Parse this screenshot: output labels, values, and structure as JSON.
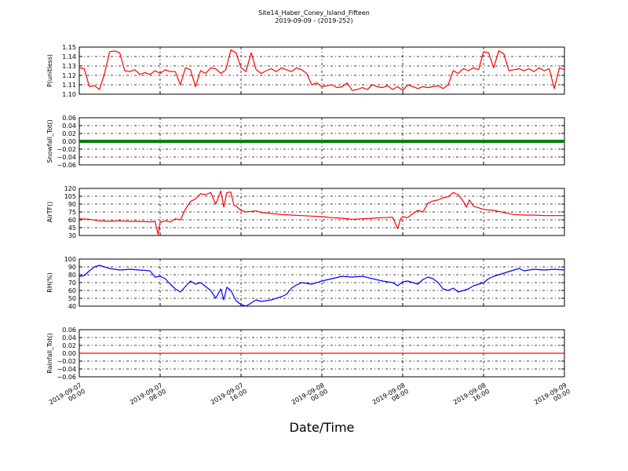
{
  "figure": {
    "title": "Site14_Haber_Coney_Island_Fifteen",
    "subtitle": "2019-09-09 - (2019-252)",
    "xlabel": "Date/Time"
  },
  "chart_data": [
    {
      "type": "line",
      "ylabel": "P(unitless)",
      "ylim": [
        1.1,
        1.15
      ],
      "yticks": [
        "1.10",
        "1.11",
        "1.12",
        "1.13",
        "1.14",
        "1.15"
      ],
      "xlim": [
        0,
        48
      ],
      "grid": true,
      "series": [
        {
          "color": "#ff0000",
          "x": [
            0,
            0.5,
            1,
            1.5,
            2,
            2.5,
            3,
            3.5,
            4,
            4.5,
            5,
            5.5,
            6,
            6.5,
            7,
            7.5,
            8,
            8.5,
            9,
            9.5,
            10,
            10.5,
            11,
            11.5,
            12,
            12.5,
            13,
            13.5,
            14,
            14.5,
            15,
            15.5,
            16,
            16.5,
            17,
            17.5,
            18,
            18.5,
            19,
            19.5,
            20,
            20.5,
            21,
            21.5,
            22,
            22.5,
            23,
            23.5,
            24,
            24.5,
            25,
            25.5,
            26,
            26.5,
            27,
            27.5,
            28,
            28.5,
            29,
            29.5,
            30,
            30.5,
            31,
            31.5,
            32,
            32.5,
            33,
            33.5,
            34,
            34.5,
            35,
            35.5,
            36,
            36.5,
            37,
            37.5,
            38,
            38.5,
            39,
            39.5,
            40,
            40.5,
            41,
            41.5,
            42,
            42.5,
            43,
            43.5,
            44,
            44.5,
            45,
            45.5,
            46,
            46.5,
            47,
            47.5,
            48
          ],
          "values": [
            1.128,
            1.127,
            1.108,
            1.109,
            1.105,
            1.122,
            1.145,
            1.146,
            1.144,
            1.125,
            1.124,
            1.126,
            1.121,
            1.123,
            1.121,
            1.125,
            1.122,
            1.126,
            1.124,
            1.124,
            1.11,
            1.128,
            1.126,
            1.108,
            1.125,
            1.122,
            1.128,
            1.127,
            1.122,
            1.126,
            1.147,
            1.144,
            1.128,
            1.124,
            1.144,
            1.126,
            1.122,
            1.125,
            1.127,
            1.124,
            1.128,
            1.126,
            1.124,
            1.128,
            1.126,
            1.122,
            1.11,
            1.112,
            1.108,
            1.109,
            1.11,
            1.107,
            1.108,
            1.112,
            1.104,
            1.105,
            1.107,
            1.105,
            1.11,
            1.108,
            1.107,
            1.109,
            1.105,
            1.108,
            1.104,
            1.11,
            1.108,
            1.106,
            1.108,
            1.107,
            1.108,
            1.109,
            1.106,
            1.11,
            1.125,
            1.122,
            1.127,
            1.125,
            1.128,
            1.126,
            1.145,
            1.144,
            1.128,
            1.146,
            1.143,
            1.125,
            1.126,
            1.127,
            1.125,
            1.127,
            1.124,
            1.128,
            1.125,
            1.127,
            1.106,
            1.128,
            1.126
          ]
        }
      ]
    },
    {
      "type": "line",
      "ylabel": "Snowfall_Tot()",
      "ylim": [
        -0.06,
        0.06
      ],
      "yticks": [
        "−0.06",
        "−0.04",
        "−0.02",
        "0.00",
        "0.02",
        "0.04",
        "0.06"
      ],
      "xlim": [
        0,
        48
      ],
      "grid": true,
      "series": [
        {
          "color": "#008000",
          "style": "thick",
          "x": [
            0,
            48
          ],
          "values": [
            0,
            0
          ]
        }
      ]
    },
    {
      "type": "line",
      "ylabel": "AirTF()",
      "ylim": [
        30,
        120
      ],
      "yticks": [
        "30",
        "45",
        "60",
        "75",
        "90",
        "105",
        "120"
      ],
      "xlim": [
        0,
        48
      ],
      "grid": true,
      "series": [
        {
          "color": "#ff0000",
          "x": [
            0,
            1,
            2,
            3,
            4,
            5,
            6,
            7,
            7.5,
            7.8,
            8,
            8.5,
            9,
            9.5,
            10,
            10.5,
            11,
            11.5,
            12,
            12.5,
            13,
            13.5,
            14,
            14.3,
            14.6,
            15,
            15.3,
            15.6,
            16,
            16.5,
            17,
            17.5,
            18,
            19,
            20,
            21,
            22,
            23,
            24,
            25,
            26,
            27,
            28,
            29,
            30,
            31,
            31.5,
            31.8,
            32,
            32.5,
            33,
            33.5,
            34,
            34.5,
            35,
            35.5,
            36,
            36.5,
            37,
            37.5,
            38,
            38.3,
            38.6,
            39,
            39.5,
            40,
            41,
            42,
            43,
            44,
            45,
            46,
            47,
            48
          ],
          "values": [
            62,
            61,
            58,
            57,
            58,
            57,
            57,
            56,
            57,
            32,
            55,
            58,
            56,
            62,
            60,
            80,
            95,
            100,
            110,
            108,
            112,
            90,
            115,
            84,
            112,
            113,
            88,
            85,
            78,
            75,
            76,
            77,
            74,
            72,
            70,
            69,
            68,
            67,
            66,
            64,
            63,
            61,
            62,
            63,
            64,
            65,
            43,
            62,
            66,
            64,
            72,
            78,
            75,
            92,
            96,
            98,
            102,
            104,
            112,
            108,
            95,
            84,
            98,
            86,
            83,
            80,
            78,
            74,
            70,
            69,
            69,
            68,
            68,
            68
          ]
        }
      ]
    },
    {
      "type": "line",
      "ylabel": "RH(%)",
      "ylim": [
        40,
        100
      ],
      "yticks": [
        "40",
        "50",
        "60",
        "70",
        "80",
        "90",
        "100"
      ],
      "xlim": [
        0,
        48
      ],
      "grid": true,
      "series": [
        {
          "color": "#0000ff",
          "x": [
            0,
            0.5,
            1,
            1.5,
            2,
            3,
            4,
            5,
            6,
            7,
            7.5,
            8,
            8.5,
            9,
            9.5,
            10,
            10.5,
            11,
            11.5,
            12,
            12.5,
            13,
            13.5,
            14,
            14.3,
            14.6,
            15,
            15.5,
            16,
            16.5,
            17,
            17.5,
            18,
            19,
            20,
            20.5,
            21,
            21.5,
            22,
            23,
            24,
            25,
            26,
            27,
            28,
            29,
            30,
            31,
            31.5,
            32,
            32.5,
            33,
            33.5,
            34,
            34.5,
            35,
            35.5,
            36,
            36.5,
            37,
            37.5,
            38,
            38.5,
            39,
            39.5,
            40,
            40.5,
            41,
            41.5,
            42,
            42.5,
            43,
            43.5,
            44,
            45,
            46,
            47,
            48
          ],
          "values": [
            78,
            79,
            85,
            90,
            92,
            88,
            86,
            87,
            86,
            85,
            77,
            78,
            75,
            68,
            62,
            58,
            65,
            72,
            68,
            70,
            65,
            60,
            50,
            62,
            48,
            64,
            60,
            47,
            42,
            40,
            44,
            48,
            46,
            48,
            52,
            55,
            63,
            67,
            70,
            68,
            72,
            75,
            78,
            77,
            78,
            75,
            72,
            70,
            66,
            71,
            72,
            70,
            68,
            74,
            77,
            75,
            70,
            62,
            60,
            63,
            58,
            60,
            62,
            66,
            68,
            70,
            75,
            78,
            80,
            82,
            84,
            86,
            88,
            85,
            87,
            86,
            87,
            86
          ]
        }
      ]
    },
    {
      "type": "line",
      "ylabel": "Rainfall_Tot()",
      "ylim": [
        -0.06,
        0.06
      ],
      "yticks": [
        "−0.06",
        "−0.04",
        "−0.02",
        "0.00",
        "0.02",
        "0.04",
        "0.06"
      ],
      "xlim": [
        0,
        48
      ],
      "grid": true,
      "series": [
        {
          "color": "#ff0000",
          "x": [
            0,
            48
          ],
          "values": [
            0,
            0
          ]
        }
      ]
    }
  ],
  "xaxis": {
    "ticks": [
      {
        "pos": 0,
        "date": "2019-09-07",
        "time": "00:00"
      },
      {
        "pos": 8,
        "date": "2019-09-07",
        "time": "08:00"
      },
      {
        "pos": 16,
        "date": "2019-09-07",
        "time": "16:00"
      },
      {
        "pos": 24,
        "date": "2019-09-08",
        "time": "00:00"
      },
      {
        "pos": 32,
        "date": "2019-09-08",
        "time": "08:00"
      },
      {
        "pos": 40,
        "date": "2019-09-08",
        "time": "16:00"
      },
      {
        "pos": 48,
        "date": "2019-09-09",
        "time": "00:00"
      }
    ]
  }
}
